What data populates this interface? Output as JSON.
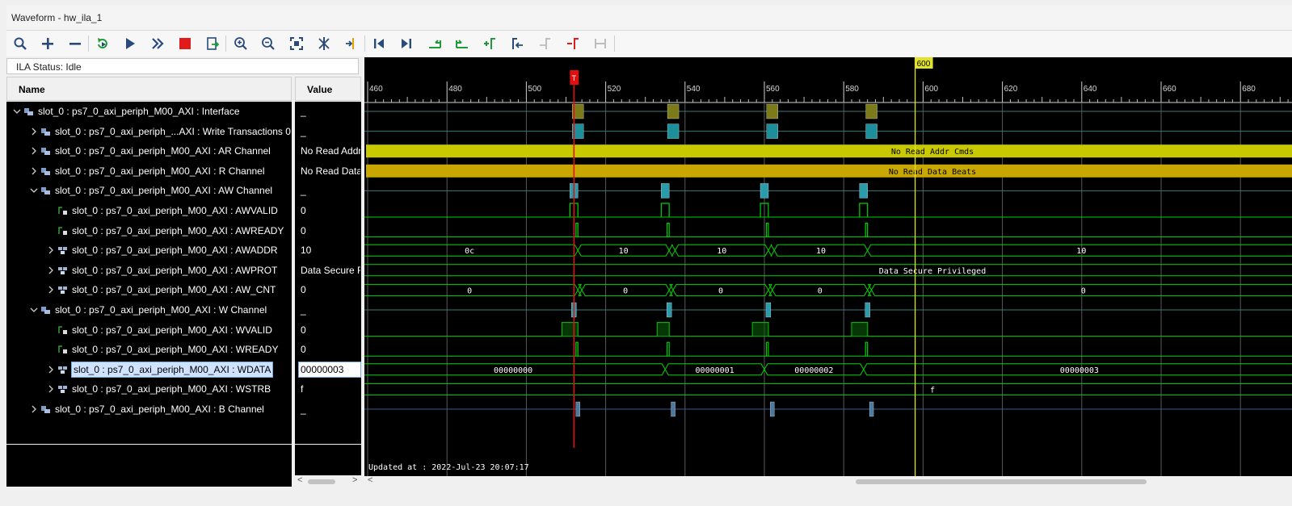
{
  "window": {
    "title": "Waveform - hw_ila_1"
  },
  "toolbar": {
    "buttons": [
      {
        "icon": "search-icon",
        "tooltip": "Search"
      },
      {
        "icon": "plus-icon",
        "tooltip": "Add"
      },
      {
        "icon": "minus-icon",
        "tooltip": "Remove"
      },
      {
        "icon": "run-trigger-immediate-icon",
        "tooltip": "Run trigger immediate"
      },
      {
        "icon": "play-icon",
        "tooltip": "Run trigger"
      },
      {
        "icon": "fast-forward-icon",
        "tooltip": "Run trigger immediate continuous"
      },
      {
        "icon": "stop-icon",
        "tooltip": "Stop trigger"
      },
      {
        "icon": "export-icon",
        "tooltip": "Export"
      },
      {
        "icon": "zoom-in-icon",
        "tooltip": "Zoom in"
      },
      {
        "icon": "zoom-out-icon",
        "tooltip": "Zoom out"
      },
      {
        "icon": "zoom-fit-icon",
        "tooltip": "Zoom fit"
      },
      {
        "icon": "cursor-icon",
        "tooltip": "Cursor"
      },
      {
        "icon": "marker-icon",
        "tooltip": "Marker"
      },
      {
        "icon": "go-first-icon",
        "tooltip": "Go to time 0"
      },
      {
        "icon": "go-last-icon",
        "tooltip": "Go to last time"
      },
      {
        "icon": "prev-transition-icon",
        "tooltip": "Previous transition"
      },
      {
        "icon": "next-transition-icon",
        "tooltip": "Next transition"
      },
      {
        "icon": "add-marker-icon",
        "tooltip": "Add marker"
      },
      {
        "icon": "prev-marker-icon",
        "tooltip": "Previous marker"
      },
      {
        "icon": "next-marker-icon",
        "tooltip": "Next marker"
      },
      {
        "icon": "swap-cursors-icon",
        "tooltip": "Swap cursors"
      },
      {
        "icon": "snap-icon",
        "tooltip": "Snap"
      }
    ]
  },
  "ila_status": "ILA Status: Idle",
  "columns": {
    "name": "Name",
    "value": "Value"
  },
  "rows": [
    {
      "name": "slot_0 : ps7_0_axi_periph_M00_AXI : Interface",
      "value": "_"
    },
    {
      "name": "slot_0 : ps7_0_axi_periph_...AXI : Write Transactions 0",
      "value": "_"
    },
    {
      "name": "slot_0 : ps7_0_axi_periph_M00_AXI : AR Channel",
      "value": "No Read Addr"
    },
    {
      "name": "slot_0 : ps7_0_axi_periph_M00_AXI : R Channel",
      "value": "No Read Data"
    },
    {
      "name": "slot_0 : ps7_0_axi_periph_M00_AXI : AW Channel",
      "value": "_"
    },
    {
      "name": "slot_0 : ps7_0_axi_periph_M00_AXI : AWVALID",
      "value": "0"
    },
    {
      "name": "slot_0 : ps7_0_axi_periph_M00_AXI : AWREADY",
      "value": "0"
    },
    {
      "name": "slot_0 : ps7_0_axi_periph_M00_AXI : AWADDR",
      "value": "10"
    },
    {
      "name": "slot_0 : ps7_0_axi_periph_M00_AXI : AWPROT",
      "value": "Data Secure F"
    },
    {
      "name": "slot_0 : ps7_0_axi_periph_M00_AXI : AW_CNT",
      "value": "0"
    },
    {
      "name": "slot_0 : ps7_0_axi_periph_M00_AXI : W Channel",
      "value": "_"
    },
    {
      "name": "slot_0 : ps7_0_axi_periph_M00_AXI : WVALID",
      "value": "0"
    },
    {
      "name": "slot_0 : ps7_0_axi_periph_M00_AXI : WREADY",
      "value": "0"
    },
    {
      "name": "slot_0 : ps7_0_axi_periph_M00_AXI : WDATA",
      "value": "00000003"
    },
    {
      "name": "slot_0 : ps7_0_axi_periph_M00_AXI : WSTRB",
      "value": "f"
    },
    {
      "name": "slot_0 : ps7_0_axi_periph_M00_AXI : B Channel",
      "value": "_"
    }
  ],
  "timeline": {
    "ticks": [
      "460",
      "480",
      "500",
      "520",
      "540",
      "560",
      "580",
      "600",
      "620",
      "640",
      "660",
      "680"
    ],
    "cursor_label": "600",
    "trigger_marker": "T"
  },
  "bus_labels": {
    "ar": "No Read Addr Cmds",
    "r": "No Read Data Beats",
    "awprot": "Data Secure Privileged",
    "wstrb": "f",
    "awaddr": [
      "0c",
      "10",
      "10",
      "10",
      "10"
    ],
    "awcnt": [
      "0",
      "0",
      "0",
      "0",
      "0"
    ],
    "wdata": [
      "00000000",
      "00000001",
      "00000002",
      "00000003"
    ]
  },
  "updated_at": "Updated at : 2022-Jul-23 20:07:17",
  "colors": {
    "signal": "#00d400",
    "cursor": "#e2e22a",
    "trigger": "#e01010",
    "ar_bus": "#c9c900",
    "r_bus": "#c8a800"
  }
}
